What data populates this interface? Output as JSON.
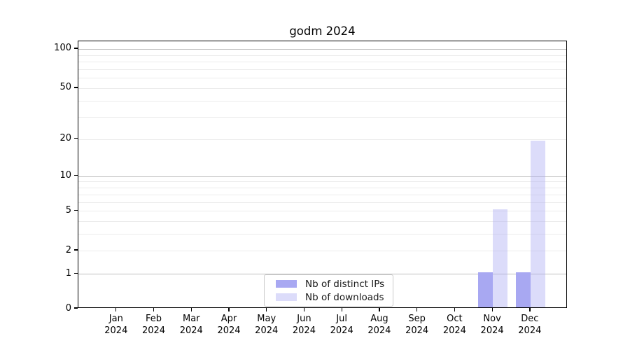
{
  "chart_data": {
    "type": "bar",
    "title": "godm 2024",
    "categories": [
      "Jan",
      "Feb",
      "Mar",
      "Apr",
      "May",
      "Jun",
      "Jul",
      "Aug",
      "Sep",
      "Oct",
      "Nov",
      "Dec"
    ],
    "year": "2024",
    "series": [
      {
        "name": "Nb of distinct IPs",
        "color": "#a8a8f2",
        "alpha": 1,
        "values": [
          0,
          0,
          0,
          0,
          0,
          0,
          0,
          0,
          0,
          0,
          1,
          1
        ]
      },
      {
        "name": "Nb of downloads",
        "color": "#a8a8f2",
        "alpha": 0.4,
        "values": [
          0,
          0,
          0,
          0,
          0,
          0,
          0,
          0,
          0,
          0,
          5,
          19
        ]
      }
    ],
    "y_axis": {
      "scale": "log1p",
      "ticks": [
        0,
        1,
        2,
        5,
        10,
        20,
        50,
        100
      ],
      "range": [
        0,
        100
      ]
    },
    "x_axis": {
      "tick_style": "month-over-year"
    },
    "grid": true,
    "grid_major_color": "#c0c0c0",
    "grid_minor_color": "#ebebeb",
    "legend_position": "lower-center-inside"
  }
}
